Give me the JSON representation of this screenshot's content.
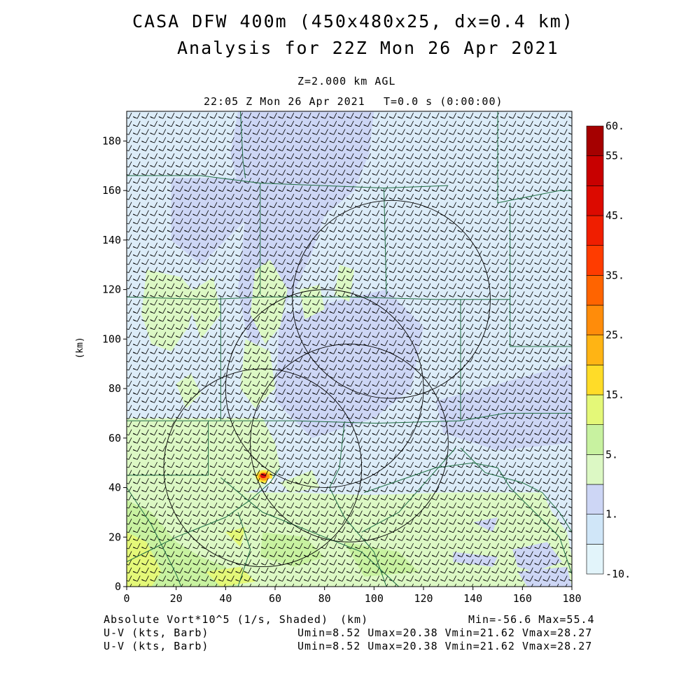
{
  "header": {
    "title_line1": "CASA DFW 400m (450x480x25, dx=0.4 km)",
    "title_line2": "Analysis for 22Z Mon 26 Apr 2021",
    "level": "Z=2.000 km AGL",
    "valid_time": "22:05 Z Mon 26 Apr 2021",
    "model_time": "T=0.0 s (0:00:00)"
  },
  "footer": {
    "field1": "Absolute Vort*10^5 (1/s, Shaded)",
    "x_unit": "(km)",
    "field1_stats": "Min=-56.6 Max=55.4",
    "field2": "U-V (kts, Barb)",
    "field2_stats": "Umin=8.52 Umax=20.38 Vmin=21.62 Vmax=28.27",
    "field3": "U-V (kts, Barb)",
    "field3_stats": "Umin=8.52 Umax=20.38 Vmin=21.62 Vmax=28.27"
  },
  "colors": {
    "blue_light": "#dcecf8",
    "blue_mid": "#cdd6f5",
    "green_light": "#dcf8c4",
    "green_mid": "#c8f2a0",
    "yellow_green": "#e4f878",
    "county_lines": "#1f6e44"
  },
  "chart_data": {
    "type": "heatmap",
    "xlabel": "(km)",
    "ylabel": "(km)",
    "xlim": [
      0,
      180
    ],
    "ylim": [
      0,
      192
    ],
    "x_ticks": [
      0,
      20,
      40,
      60,
      80,
      100,
      120,
      140,
      160,
      180
    ],
    "y_ticks": [
      0,
      20,
      40,
      60,
      80,
      100,
      120,
      140,
      160,
      180
    ],
    "colorbar": {
      "tick_labels": [
        "60.",
        "55.",
        "45.",
        "35.",
        "25.",
        "15.",
        "5.",
        "1.",
        "-10."
      ],
      "bins": [
        {
          "color": "#e2f4fa"
        },
        {
          "color": "#d0e6f8"
        },
        {
          "color": "#cdd6f5"
        },
        {
          "color": "#dcf8c4"
        },
        {
          "color": "#c8f2a0"
        },
        {
          "color": "#e4f878"
        },
        {
          "color": "#ffdc28"
        },
        {
          "color": "#ffb414"
        },
        {
          "color": "#ff8c0a"
        },
        {
          "color": "#ff6400"
        },
        {
          "color": "#ff3c00"
        },
        {
          "color": "#f01e00"
        },
        {
          "color": "#dc0a00"
        },
        {
          "color": "#c80000"
        },
        {
          "color": "#a50000"
        }
      ]
    },
    "radar_rings": [
      {
        "center_x": 55,
        "center_y": 48,
        "radius_km": 40
      },
      {
        "center_x": 80,
        "center_y": 80,
        "radius_km": 40
      },
      {
        "center_x": 90,
        "center_y": 58,
        "radius_km": 40
      },
      {
        "center_x": 107,
        "center_y": 116,
        "radius_km": 40
      }
    ],
    "max_vorticity_core": {
      "x": 55.5,
      "y": 44.5,
      "value": 55.4
    },
    "min_value": -56.6,
    "max_value": 55.4,
    "wind_barbs": {
      "u_min": 8.52,
      "u_max": 20.38,
      "v_min": 21.62,
      "v_max": 28.27,
      "units": "kts"
    }
  }
}
